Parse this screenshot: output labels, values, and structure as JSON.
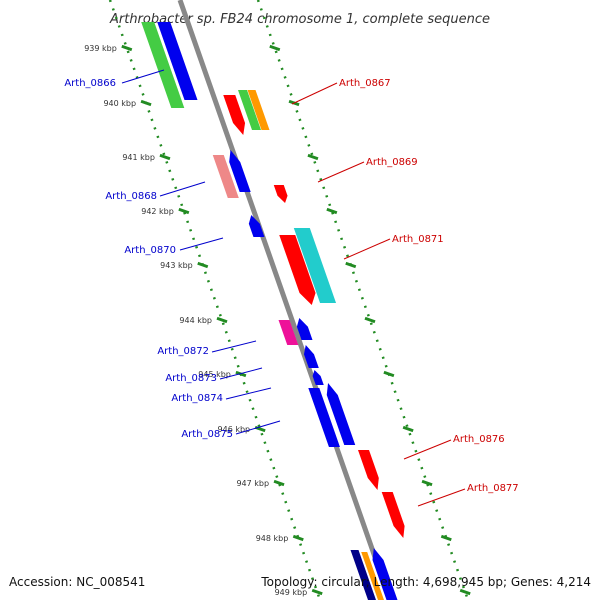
{
  "title": "Arthrobacter sp. FB24 chromosome 1, complete sequence",
  "footer": {
    "accession": "Accession: NC_008541",
    "topology": "Topology: circular; Length: 4,698,945 bp; Genes: 4,214"
  },
  "colors": {
    "backbone": "#888888",
    "tick": "#228b22",
    "label_forward": "#cc0000",
    "label_reverse": "#0000cc",
    "red": "#ff0000",
    "blue": "#0000ee",
    "green": "#44cc44",
    "orange": "#ff9900",
    "pink": "#ee8888",
    "cyan": "#22cccc",
    "magenta": "#ee1199",
    "navy": "#000088"
  },
  "kbp_ticks": [
    "939 kbp",
    "940 kbp",
    "941 kbp",
    "942 kbp",
    "943 kbp",
    "944 kbp",
    "945 kbp",
    "946 kbp",
    "947 kbp",
    "948 kbp",
    "949 kbp"
  ],
  "genes": [
    {
      "label": "Arth_0866",
      "strand": "reverse"
    },
    {
      "label": "Arth_0867",
      "strand": "forward"
    },
    {
      "label": "Arth_0868",
      "strand": "reverse"
    },
    {
      "label": "Arth_0869",
      "strand": "forward"
    },
    {
      "label": "Arth_0870",
      "strand": "reverse"
    },
    {
      "label": "Arth_0871",
      "strand": "forward"
    },
    {
      "label": "Arth_0872",
      "strand": "reverse"
    },
    {
      "label": "Arth_0873",
      "strand": "reverse"
    },
    {
      "label": "Arth_0874",
      "strand": "reverse"
    },
    {
      "label": "Arth_0875",
      "strand": "reverse"
    },
    {
      "label": "Arth_0876",
      "strand": "forward"
    },
    {
      "label": "Arth_0877",
      "strand": "forward"
    }
  ]
}
